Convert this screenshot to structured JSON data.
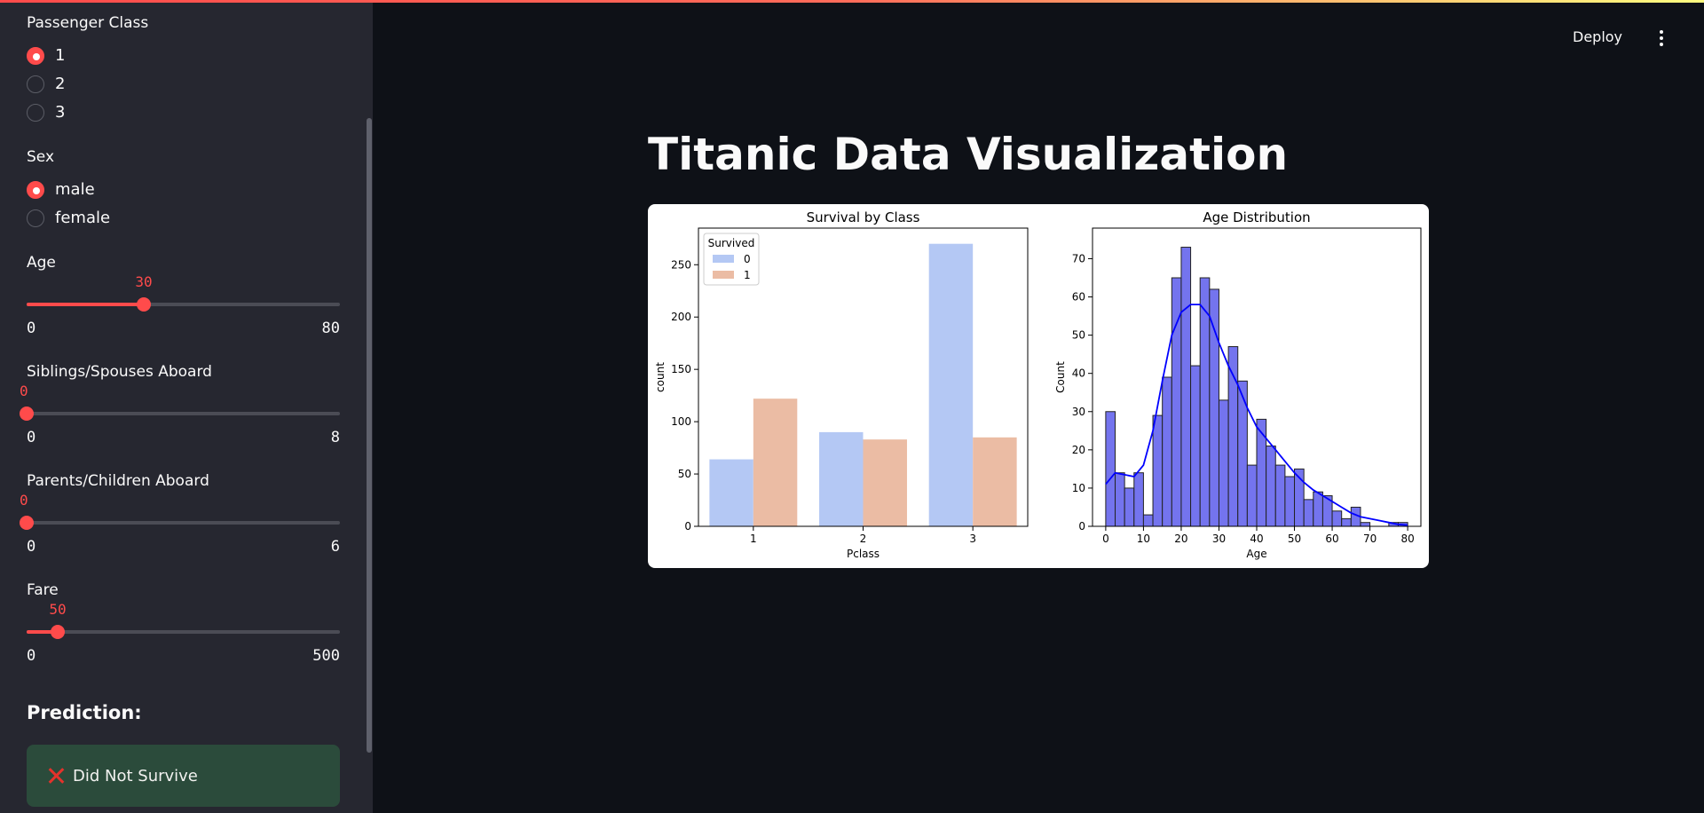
{
  "sidebar": {
    "passenger_class": {
      "label": "Passenger Class",
      "options": [
        "1",
        "2",
        "3"
      ],
      "selected": "1"
    },
    "sex": {
      "label": "Sex",
      "options": [
        "male",
        "female"
      ],
      "selected": "male"
    },
    "age": {
      "label": "Age",
      "value": "30",
      "min": "0",
      "max": "80"
    },
    "sibsp": {
      "label": "Siblings/Spouses Aboard",
      "value": "0",
      "min": "0",
      "max": "8"
    },
    "parch": {
      "label": "Parents/Children Aboard",
      "value": "0",
      "min": "0",
      "max": "6"
    },
    "fare": {
      "label": "Fare",
      "value": "50",
      "min": "0",
      "max": "500"
    },
    "prediction_title": "Prediction:",
    "prediction_result": "Did Not Survive",
    "prediction_icon": "cross-mark-icon"
  },
  "header": {
    "deploy_label": "Deploy",
    "menu_icon": "more-vertical-icon"
  },
  "main": {
    "title": "Titanic Data Visualization"
  },
  "colors": {
    "accent": "#ff4b4b",
    "prediction_bg": "#2b4b3b",
    "survived_0": "#b4c8f4",
    "survived_1": "#ebbca4",
    "hist": "#7474ee",
    "kde": "#0000ff"
  },
  "chart_data": [
    {
      "type": "bar",
      "title": "Survival by Class",
      "xlabel": "Pclass",
      "ylabel": "count",
      "categories": [
        "1",
        "2",
        "3"
      ],
      "legend_title": "Survived",
      "legend_position": "top-left",
      "series": [
        {
          "name": "0",
          "values": [
            64,
            90,
            270
          ]
        },
        {
          "name": "1",
          "values": [
            122,
            83,
            85
          ]
        }
      ],
      "ylim": [
        0,
        285
      ],
      "yticks": [
        0,
        50,
        100,
        150,
        200,
        250
      ]
    },
    {
      "type": "bar",
      "subtype": "histogram",
      "title": "Age Distribution",
      "xlabel": "Age",
      "ylabel": "Count",
      "bin_edges": [
        0,
        2.5,
        5,
        7.5,
        10,
        12.5,
        15,
        17.5,
        20,
        22.5,
        25,
        27.5,
        30,
        32.5,
        35,
        37.5,
        40,
        42.5,
        45,
        47.5,
        50,
        52.5,
        55,
        57.5,
        60,
        62.5,
        65,
        67.5,
        70,
        72.5,
        75,
        77.5,
        80
      ],
      "values": [
        30,
        14,
        10,
        14,
        3,
        29,
        39,
        65,
        73,
        42,
        65,
        62,
        33,
        47,
        38,
        16,
        28,
        21,
        16,
        13,
        15,
        7,
        9,
        8,
        4,
        2,
        5,
        1,
        0,
        0,
        1,
        1
      ],
      "kde": {
        "x": [
          0,
          2.5,
          5,
          7.5,
          10,
          12.5,
          15,
          17.5,
          20,
          22.5,
          25,
          27.5,
          30,
          32.5,
          35,
          37.5,
          40,
          42.5,
          45,
          47.5,
          50,
          52.5,
          55,
          57.5,
          60,
          62.5,
          65,
          67.5,
          70,
          72.5,
          75,
          77.5,
          80
        ],
        "y": [
          11,
          14,
          13.5,
          13,
          16,
          25,
          38,
          50,
          56,
          58,
          58,
          55,
          48,
          42,
          37,
          31,
          26,
          23,
          20,
          17,
          14,
          11.5,
          9.5,
          8,
          6.5,
          5,
          3.5,
          2.5,
          2,
          1.5,
          1,
          0.5,
          0.3
        ]
      },
      "xlim": [
        -3.5,
        83.5
      ],
      "ylim": [
        0,
        78
      ],
      "xticks": [
        0,
        10,
        20,
        30,
        40,
        50,
        60,
        70,
        80
      ],
      "yticks": [
        0,
        10,
        20,
        30,
        40,
        50,
        60,
        70
      ]
    }
  ]
}
